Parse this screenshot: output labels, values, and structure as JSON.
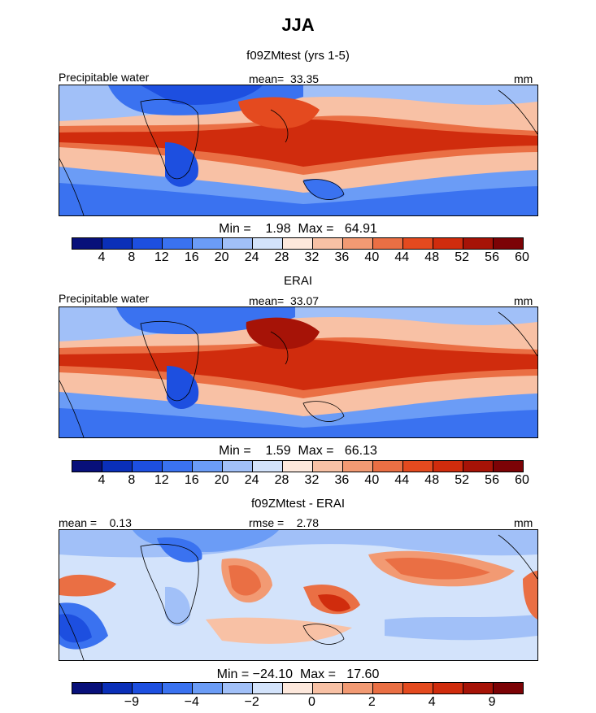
{
  "title": "JJA",
  "palette": [
    "#08107a",
    "#0a2fb8",
    "#1d4fe0",
    "#3a72f0",
    "#6b9cf6",
    "#a1c0f8",
    "#d3e3fb",
    "#fde8dc",
    "#f8c1a5",
    "#f29a73",
    "#ea6f44",
    "#e44a1f",
    "#d02c0d",
    "#a61307",
    "#7c0306"
  ],
  "panels": [
    {
      "title": "f09ZMtest (yrs 1-5)",
      "left_label": "Precipitable water",
      "center_label": "mean=  33.35",
      "right_label": "mm",
      "minmax": "Min =    1.98  Max =   64.91",
      "colorbar_ticks": [
        "4",
        "8",
        "12",
        "16",
        "20",
        "24",
        "28",
        "32",
        "36",
        "40",
        "44",
        "48",
        "52",
        "56",
        "60"
      ]
    },
    {
      "title": "ERAI",
      "left_label": "Precipitable water",
      "center_label": "mean=  33.07",
      "right_label": "mm",
      "minmax": "Min =    1.59  Max =   66.13",
      "colorbar_ticks": [
        "4",
        "8",
        "12",
        "16",
        "20",
        "24",
        "28",
        "32",
        "36",
        "40",
        "44",
        "48",
        "52",
        "56",
        "60"
      ]
    },
    {
      "title": "f09ZMtest - ERAI",
      "left_label": "mean =    0.13",
      "center_label": "rmse =    2.78",
      "right_label": "mm",
      "minmax": "Min = −24.10  Max =   17.60",
      "colorbar_ticks": [
        "−9",
        "−4",
        "−2",
        "0",
        "2",
        "4",
        "9"
      ]
    }
  ]
}
